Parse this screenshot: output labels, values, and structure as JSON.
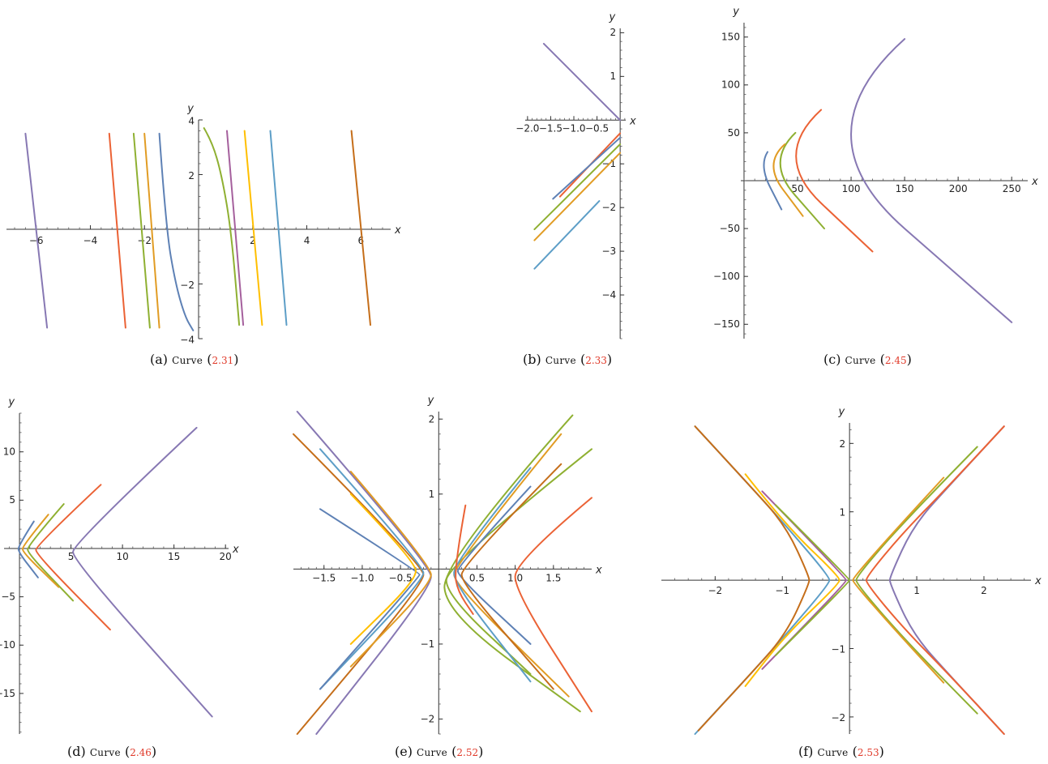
{
  "colors": {
    "blue": "#5e81b5",
    "yellow": "#e19c24",
    "green": "#8fb032",
    "red": "#eb6235",
    "purple": "#8778b3",
    "brown": "#c56e1a",
    "lightblue": "#5d9ec7",
    "gold": "#ffbf00",
    "magenta": "#a5609d"
  },
  "captions": [
    {
      "label": "(a)",
      "word": "Curve",
      "open": "(",
      "ref": "2.31",
      "close": ")"
    },
    {
      "label": "(b)",
      "word": "Curve",
      "open": "(",
      "ref": "2.33",
      "close": ")"
    },
    {
      "label": "(c)",
      "word": "Curve",
      "open": "(",
      "ref": "2.45",
      "close": ")"
    },
    {
      "label": "(d)",
      "word": "Curve",
      "open": "(",
      "ref": "2.46",
      "close": ")"
    },
    {
      "label": "(e)",
      "word": "Curve",
      "open": "(",
      "ref": "2.52",
      "close": ")"
    },
    {
      "label": "(f)",
      "word": "Curve",
      "open": "(",
      "ref": "2.53",
      "close": ")"
    }
  ],
  "chart_data": [
    {
      "type": "line",
      "xlabel": "x",
      "ylabel": "y",
      "xlim": [
        -7.1,
        7.1
      ],
      "ylim": [
        -4,
        4
      ],
      "xticks": [
        -6,
        -4,
        -2,
        2,
        4,
        6
      ],
      "yticks": [
        -4,
        -2,
        2,
        4
      ],
      "series": [
        {
          "color": "purple",
          "x": [
            -6.4,
            -5.6
          ],
          "y": [
            3.5,
            -3.6
          ]
        },
        {
          "color": "red",
          "x": [
            -3.3,
            -2.7
          ],
          "y": [
            3.5,
            -3.6
          ]
        },
        {
          "color": "green",
          "x": [
            -2.4,
            -1.8
          ],
          "y": [
            3.5,
            -3.6
          ]
        },
        {
          "color": "yellow",
          "x": [
            -2.0,
            -1.45
          ],
          "y": [
            3.5,
            -3.6
          ]
        },
        {
          "color": "blue",
          "x": [
            -1.45,
            -1.2,
            -0.85,
            -0.5,
            -0.2
          ],
          "y": [
            3.5,
            0,
            -2,
            -3.2,
            -3.7
          ]
        },
        {
          "color": "green",
          "x": [
            0.2,
            0.5,
            0.85,
            1.2,
            1.5
          ],
          "y": [
            3.7,
            3.2,
            2,
            0,
            -3.5
          ]
        },
        {
          "color": "magenta",
          "x": [
            1.05,
            1.65
          ],
          "y": [
            3.6,
            -3.5
          ]
        },
        {
          "color": "gold",
          "x": [
            1.7,
            2.35
          ],
          "y": [
            3.6,
            -3.5
          ]
        },
        {
          "color": "lightblue",
          "x": [
            2.65,
            3.25
          ],
          "y": [
            3.6,
            -3.5
          ]
        },
        {
          "color": "brown",
          "x": [
            5.65,
            6.35
          ],
          "y": [
            3.6,
            -3.5
          ]
        }
      ]
    },
    {
      "type": "line",
      "xlabel": "x",
      "ylabel": "y",
      "xlim": [
        -2.05,
        0.12
      ],
      "ylim": [
        -5,
        2.1
      ],
      "xticks": [
        -2.0,
        -1.5,
        -1.0,
        -0.5
      ],
      "xticklabels": [
        "-2.0",
        "-1.5",
        "-1.0",
        "-0.5"
      ],
      "yticks": [
        -4,
        -3,
        -2,
        -1,
        1,
        2
      ],
      "series": [
        {
          "color": "purple",
          "x": [
            -1.65,
            0
          ],
          "y": [
            1.75,
            0
          ]
        },
        {
          "color": "red",
          "x": [
            -1.3,
            0
          ],
          "y": [
            -1.75,
            -0.3
          ]
        },
        {
          "color": "blue",
          "x": [
            -1.45,
            0
          ],
          "y": [
            -1.8,
            -0.4
          ]
        },
        {
          "color": "green",
          "x": [
            -1.85,
            0
          ],
          "y": [
            -2.5,
            -0.55
          ]
        },
        {
          "color": "yellow",
          "x": [
            -1.85,
            0
          ],
          "y": [
            -2.75,
            -0.75
          ]
        },
        {
          "color": "lightblue",
          "x": [
            -1.85,
            -0.45
          ],
          "y": [
            -3.4,
            -1.85
          ]
        }
      ]
    },
    {
      "type": "line",
      "xlabel": "x",
      "ylabel": "y",
      "xlim": [
        -3,
        265
      ],
      "ylim": [
        -165,
        165
      ],
      "xticks": [
        50,
        100,
        150,
        200,
        250
      ],
      "yticks": [
        -150,
        -100,
        -50,
        50,
        100,
        150
      ],
      "series": [
        {
          "color": "purple",
          "x": [
            150,
            50,
            250
          ],
          "y": [
            148,
            48,
            -148
          ]
        },
        {
          "color": "red",
          "x": [
            72,
            25,
            120
          ],
          "y": [
            74,
            26,
            -74
          ]
        },
        {
          "color": "green",
          "x": [
            48,
            20,
            75
          ],
          "y": [
            50,
            20,
            -50
          ]
        },
        {
          "color": "yellow",
          "x": [
            38,
            18,
            55
          ],
          "y": [
            38,
            18,
            -37
          ]
        },
        {
          "color": "blue",
          "x": [
            22,
            14,
            35
          ],
          "y": [
            30,
            16,
            -30
          ]
        }
      ]
    },
    {
      "type": "line",
      "xlabel": "x",
      "ylabel": "y",
      "xlim": [
        -1.5,
        20.3
      ],
      "ylim": [
        -19.2,
        14
      ],
      "xticks": [
        5,
        10,
        15,
        20
      ],
      "yticks": [
        -15,
        -10,
        -5,
        5,
        10
      ],
      "series": [
        {
          "color": "purple",
          "x": [
            17.2,
            5.2,
            5.2,
            18.7
          ],
          "y": [
            12.5,
            0.5,
            -1.2,
            -17.4
          ]
        },
        {
          "color": "red",
          "x": [
            7.9,
            1.6,
            1.6,
            8.8
          ],
          "y": [
            6.6,
            0.3,
            -0.6,
            -8.4
          ]
        },
        {
          "color": "green",
          "x": [
            4.3,
            0.8,
            0.8,
            5.2
          ],
          "y": [
            4.6,
            0.3,
            -0.5,
            -5.4
          ]
        },
        {
          "color": "yellow",
          "x": [
            2.8,
            0.3,
            0.3,
            3.8
          ],
          "y": [
            3.5,
            0.3,
            -0.4,
            -4.0
          ]
        },
        {
          "color": "blue",
          "x": [
            1.4,
            -0.1,
            -0.1,
            1.8
          ],
          "y": [
            2.8,
            0.3,
            -0.4,
            -3.0
          ]
        }
      ]
    },
    {
      "type": "line",
      "xlabel": "x",
      "ylabel": "y",
      "xlim": [
        -1.9,
        2.0
      ],
      "ylim": [
        -2.2,
        2.1
      ],
      "xticks": [
        -1.5,
        -1.0,
        -0.5,
        0.5,
        1.0,
        1.5
      ],
      "xticklabels": [
        "-1.5",
        "-1.0",
        "-0.5",
        "0.5",
        "1.0",
        "1.5"
      ],
      "yticks": [
        -2,
        -1,
        1,
        2
      ],
      "series": [
        {
          "color": "purple",
          "x": [
            -1.85,
            -0.1,
            -0.1,
            -1.6
          ],
          "y": [
            2.1,
            0.05,
            -0.25,
            -2.2
          ]
        },
        {
          "color": "brown",
          "x": [
            -1.9,
            -0.2,
            -0.2,
            -1.85
          ],
          "y": [
            1.8,
            0.05,
            -0.2,
            -2.2
          ]
        },
        {
          "color": "lightblue",
          "x": [
            -1.55,
            -0.2,
            -0.2,
            -1.55
          ],
          "y": [
            1.6,
            0.05,
            -0.15,
            -1.6
          ]
        },
        {
          "color": "yellow",
          "x": [
            -1.15,
            -0.1,
            -0.1,
            -1.15
          ],
          "y": [
            1.3,
            0.05,
            -0.2,
            -1.3
          ]
        },
        {
          "color": "blue",
          "x": [
            -1.55,
            -0.25,
            -0.25,
            -1.55
          ],
          "y": [
            0.8,
            -0.05,
            -0.1,
            -1.6
          ]
        },
        {
          "color": "gold",
          "x": [
            -1.15,
            -0.3,
            -0.3,
            -1.15
          ],
          "y": [
            1.0,
            0.1,
            -0.15,
            -1.0
          ]
        },
        {
          "color": "green",
          "x": [
            2.0,
            0.1,
            0.1,
            1.2
          ],
          "y": [
            1.6,
            0.05,
            -0.35,
            -1.4
          ]
        },
        {
          "color": "green",
          "x": [
            1.75,
            0.05,
            0.1,
            1.85
          ],
          "y": [
            2.05,
            0.1,
            -0.6,
            -1.9
          ]
        },
        {
          "color": "yellow",
          "x": [
            1.6,
            0.2,
            0.2,
            1.7
          ],
          "y": [
            1.8,
            0.05,
            -0.2,
            -1.7
          ]
        },
        {
          "color": "lightblue",
          "x": [
            1.2,
            0.2,
            0.2,
            1.2
          ],
          "y": [
            1.35,
            0.1,
            -0.2,
            -1.5
          ]
        },
        {
          "color": "blue",
          "x": [
            1.2,
            0.25,
            0.25,
            1.2
          ],
          "y": [
            1.1,
            0.05,
            -0.1,
            -1.0
          ]
        },
        {
          "color": "brown",
          "x": [
            1.6,
            0.3,
            0.3,
            1.5
          ],
          "y": [
            1.4,
            0.05,
            -0.2,
            -1.6
          ]
        },
        {
          "color": "red",
          "x": [
            2.0,
            1.0,
            1.0,
            2.0
          ],
          "y": [
            0.95,
            0.1,
            -0.3,
            -1.9
          ]
        },
        {
          "color": "red",
          "x": [
            0.35,
            0.2,
            0.25,
            0.45
          ],
          "y": [
            0.85,
            0.0,
            -0.3,
            -0.6
          ]
        }
      ]
    },
    {
      "type": "line",
      "xlabel": "x",
      "ylabel": "y",
      "xlim": [
        -2.8,
        2.7
      ],
      "ylim": [
        -2.25,
        2.3
      ],
      "xticks": [
        -2,
        -1,
        1,
        2
      ],
      "yticks": [
        -2,
        -1,
        1,
        2
      ],
      "series": [
        {
          "color": "lightblue",
          "x": [
            -2.3,
            -1.5,
            -0.95,
            -0.3,
            -0.3,
            -0.95,
            -1.5,
            -2.3
          ],
          "y": [
            2.25,
            1.4,
            0.8,
            0.05,
            -0.05,
            -0.8,
            -1.4,
            -2.25
          ]
        },
        {
          "color": "brown",
          "x": [
            -2.3,
            -1.5,
            -0.95,
            -0.6,
            -0.6,
            -0.95,
            -1.5,
            -2.25
          ],
          "y": [
            2.25,
            1.4,
            0.8,
            0.05,
            -0.05,
            -0.8,
            -1.4,
            -2.2
          ]
        },
        {
          "color": "gold",
          "x": [
            -1.55,
            -0.95,
            -0.15,
            -0.15,
            -0.95,
            -1.55
          ],
          "y": [
            1.55,
            0.8,
            0.05,
            -0.05,
            -0.8,
            -1.55
          ]
        },
        {
          "color": "magenta",
          "x": [
            -1.3,
            -0.05,
            -0.05,
            -1.3
          ],
          "y": [
            1.3,
            0.03,
            -0.03,
            -1.3
          ]
        },
        {
          "color": "green",
          "x": [
            -1.1,
            0.0,
            0.0,
            -1.1
          ],
          "y": [
            1.1,
            0.02,
            -0.02,
            -1.1
          ]
        },
        {
          "color": "purple",
          "x": [
            2.3,
            1.5,
            0.95,
            0.6,
            0.6,
            0.95,
            1.5,
            2.3
          ],
          "y": [
            2.25,
            1.4,
            0.8,
            0.05,
            -0.05,
            -0.8,
            -1.4,
            -2.25
          ]
        },
        {
          "color": "red",
          "x": [
            2.3,
            1.5,
            0.8,
            0.25,
            0.25,
            0.8,
            1.5,
            2.3
          ],
          "y": [
            2.25,
            1.4,
            0.7,
            0.05,
            -0.05,
            -0.7,
            -1.4,
            -2.25
          ]
        },
        {
          "color": "green",
          "x": [
            1.9,
            0.8,
            0.1,
            0.1,
            0.8,
            1.9
          ],
          "y": [
            1.95,
            0.85,
            0.05,
            -0.05,
            -0.85,
            -1.95
          ]
        },
        {
          "color": "yellow",
          "x": [
            1.4,
            0.65,
            0.05,
            0.05,
            0.65,
            1.4
          ],
          "y": [
            1.5,
            0.7,
            0.03,
            -0.03,
            -0.7,
            -1.5
          ]
        }
      ]
    }
  ]
}
